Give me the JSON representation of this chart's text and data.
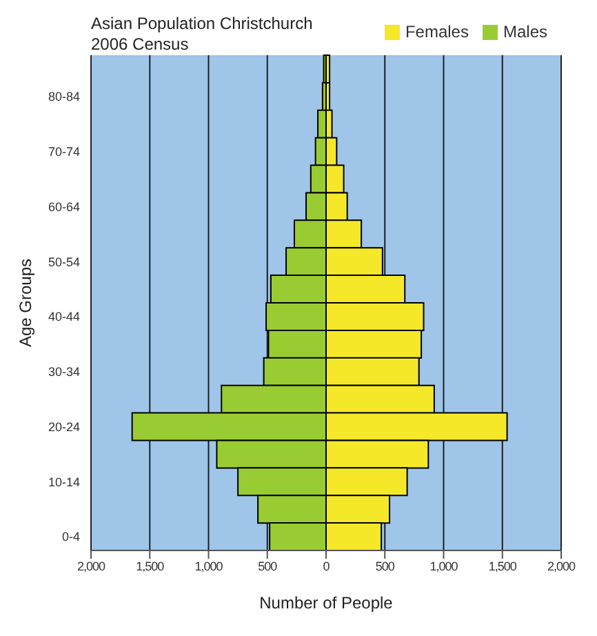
{
  "chart_data": {
    "type": "bar",
    "orientation": "horizontal",
    "stacked": true,
    "title": "Asian Population Christchurch",
    "subtitle": "2006 Census",
    "xlabel": "Number of People",
    "ylabel": "Age Groups",
    "categories": [
      null,
      "80-84",
      null,
      "70-74",
      null,
      "60-64",
      null,
      "50-54",
      null,
      "40-44",
      null,
      "30-34",
      null,
      "20-24",
      null,
      "10-14",
      null,
      "0-4"
    ],
    "series": [
      {
        "name": "Males",
        "color": "#99cc33",
        "values": [
          -20,
          -30,
          -70,
          -90,
          -130,
          -170,
          -270,
          -340,
          -470,
          -510,
          -490,
          -530,
          -890,
          -1650,
          -930,
          -750,
          -580,
          -480
        ]
      },
      {
        "name": "Females",
        "color": "#f5e829",
        "values": [
          30,
          30,
          50,
          90,
          150,
          180,
          300,
          480,
          670,
          830,
          810,
          790,
          920,
          1540,
          870,
          690,
          540,
          470
        ]
      }
    ],
    "xlim": [
      -2000,
      2000
    ],
    "xticks": [
      {
        "value": -2000,
        "label": "2,000"
      },
      {
        "value": -1500,
        "label": "1,500"
      },
      {
        "value": -1000,
        "label": "1,000"
      },
      {
        "value": -500,
        "label": "500"
      },
      0,
      500,
      {
        "value": 1000,
        "label": "1,000"
      },
      {
        "value": 1500,
        "label": "1,500"
      },
      {
        "value": 2000,
        "label": "2,000"
      }
    ],
    "grid": "x",
    "legend": "top right"
  }
}
